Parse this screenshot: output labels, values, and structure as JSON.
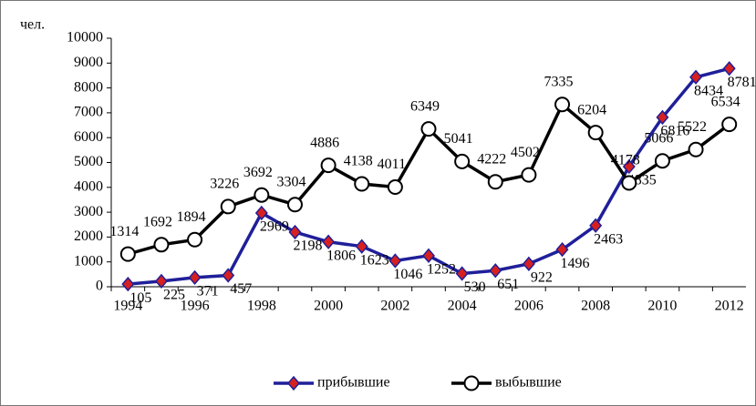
{
  "chart_data": {
    "type": "line",
    "ylabel": "чел.",
    "categories": [
      1994,
      null,
      1996,
      null,
      1998,
      null,
      2000,
      null,
      2002,
      null,
      2004,
      null,
      2006,
      null,
      2008,
      null,
      2010,
      null,
      2012
    ],
    "series": [
      {
        "name": "прибывшие",
        "color": "#1f1f9a",
        "marker_color": "#d62020",
        "marker": "diamond",
        "values": [
          105,
          225,
          371,
          457,
          2969,
          2198,
          1806,
          1623,
          1046,
          1252,
          530,
          651,
          922,
          1496,
          2463,
          4835,
          6816,
          8434,
          8781
        ]
      },
      {
        "name": "выбывшие",
        "color": "#000000",
        "marker_color": "#ffffff",
        "marker": "circle",
        "values": [
          1314,
          1692,
          1894,
          3226,
          3692,
          3304,
          4886,
          4138,
          4011,
          6349,
          5041,
          4222,
          4502,
          7335,
          6204,
          4178,
          5066,
          5522,
          6534
        ]
      }
    ],
    "ylim": [
      0,
      10000
    ],
    "yticks": [
      0,
      1000,
      2000,
      3000,
      4000,
      5000,
      6000,
      7000,
      8000,
      9000,
      10000
    ],
    "grid": false,
    "legend": "bottom"
  }
}
